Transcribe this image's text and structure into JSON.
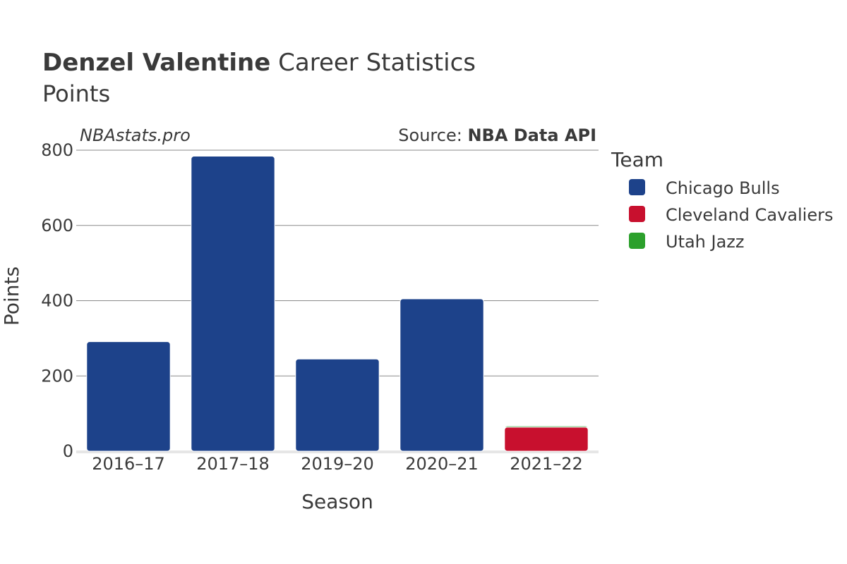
{
  "header": {
    "player_name": "Denzel Valentine",
    "title_suffix": "Career Statistics",
    "subtitle": "Points"
  },
  "watermark": "NBAstats.pro",
  "source": {
    "prefix": "Source: ",
    "name": "NBA Data API"
  },
  "chart_data": {
    "type": "bar",
    "stacked": true,
    "title": "Denzel Valentine Career Statistics",
    "subtitle": "Points",
    "xlabel": "Season",
    "ylabel": "Points",
    "categories": [
      "2016–17",
      "2017–18",
      "2019–20",
      "2020–21",
      "2021–22"
    ],
    "series": [
      {
        "name": "Chicago Bulls",
        "color": "#1d428a",
        "values": [
          291,
          784,
          245,
          405,
          0
        ]
      },
      {
        "name": "Cleveland Cavaliers",
        "color": "#c8102e",
        "values": [
          0,
          0,
          0,
          0,
          64
        ]
      },
      {
        "name": "Utah Jazz",
        "color": "#2ca02c",
        "values": [
          0,
          0,
          0,
          0,
          3
        ]
      }
    ],
    "ylim": [
      0,
      800
    ],
    "yticks": [
      0,
      200,
      400,
      600,
      800
    ],
    "grid": true,
    "legend": {
      "title": "Team",
      "placement": "right"
    }
  }
}
